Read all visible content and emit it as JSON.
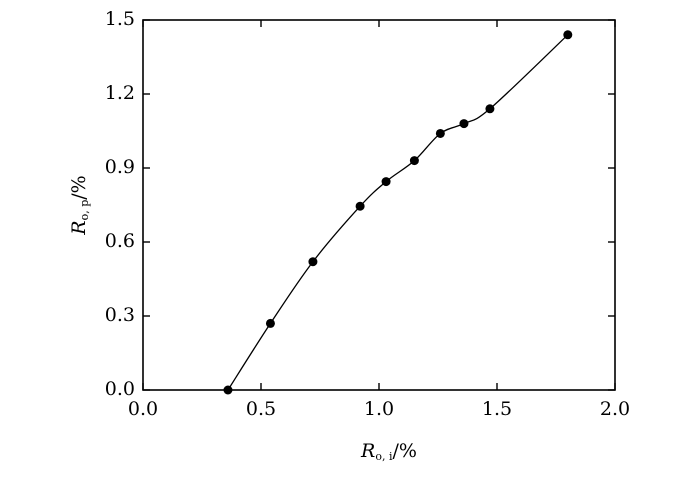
{
  "chart_data": {
    "type": "scatter",
    "x": [
      0.36,
      0.54,
      0.72,
      0.92,
      1.03,
      1.15,
      1.26,
      1.36,
      1.47,
      1.8
    ],
    "series": [
      {
        "color": "#000000",
        "values": [
          0.0,
          0.27,
          0.52,
          0.745,
          0.845,
          0.93,
          1.04,
          1.08,
          1.14,
          1.44
        ]
      }
    ],
    "xlabel": [
      "R",
      "o, i",
      "/%"
    ],
    "ylabel": [
      "R",
      "o, p",
      "/%"
    ],
    "xlim": [
      0,
      2.0
    ],
    "ylim": [
      0,
      1.5
    ],
    "xticks": [
      {
        "value": 0,
        "label": "0.0"
      },
      0.5,
      {
        "value": 1,
        "label": "1.0"
      },
      1.5,
      {
        "value": 2,
        "label": "2.0"
      }
    ],
    "yticks": [
      {
        "value": 0,
        "label": "0.0"
      },
      0.3,
      0.6,
      0.9,
      1.2,
      1.5
    ],
    "smooth_line": true
  }
}
